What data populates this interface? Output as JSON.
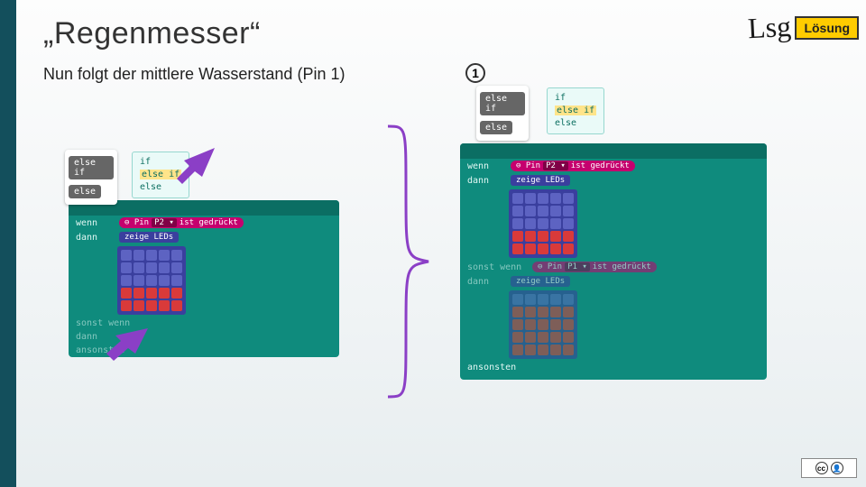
{
  "title": "„Regenmesser“",
  "subtitle": "Nun folgt der mittlere Wasserstand (Pin 1)",
  "lsg": {
    "script": "Lsg",
    "label": "Lösung"
  },
  "circled": "1",
  "colors": {
    "teal_dark": "#0b6e63",
    "teal": "#0f8b7d",
    "magenta": "#c5006e",
    "magenta_dark": "#800046",
    "indigo": "#3a3f9e",
    "led_on": "#d93a3a",
    "led_off": "#5d63c2",
    "highlight": "#ffe48a",
    "purple_arrow": "#8b3fc6",
    "brace": "#8b3fc6"
  },
  "popup_gray": {
    "items": [
      "else if",
      "else"
    ]
  },
  "popup_teal": {
    "lines": [
      "if",
      "else if",
      "else"
    ],
    "highlight_index": 1
  },
  "left_block": {
    "wenn": "wenn",
    "dann": "dann",
    "pin_prefix": "⊖ Pin",
    "pin_value": "P2 ▾",
    "pin_suffix": "ist gedrückt",
    "zeige": "zeige LEDs",
    "sonst_wenn": "sonst wenn",
    "ansonsten": "ansonsten",
    "grid_on_rows": [
      0,
      0,
      0,
      0,
      0,
      0,
      0,
      0,
      0,
      0,
      0,
      0,
      0,
      0,
      0,
      1,
      1,
      1,
      1,
      1,
      1,
      1,
      1,
      1,
      1
    ]
  },
  "right_block": {
    "wenn": "wenn",
    "dann": "dann",
    "pin_prefix": "⊖ Pin",
    "pin_value_1": "P2 ▾",
    "pin_value_2": "P1 ▾",
    "pin_suffix": "ist gedrückt",
    "zeige": "zeige LEDs",
    "sonst_wenn": "sonst wenn",
    "ansonsten": "ansonsten",
    "grid1_on": [
      0,
      0,
      0,
      0,
      0,
      0,
      0,
      0,
      0,
      0,
      0,
      0,
      0,
      0,
      0,
      1,
      1,
      1,
      1,
      1,
      1,
      1,
      1,
      1,
      1
    ],
    "grid2_on": [
      0,
      0,
      0,
      0,
      0,
      1,
      1,
      1,
      1,
      1,
      1,
      1,
      1,
      1,
      1,
      1,
      1,
      1,
      1,
      1,
      1,
      1,
      1,
      1,
      1
    ]
  },
  "cc": {
    "cc": "cc",
    "by": "BY"
  }
}
